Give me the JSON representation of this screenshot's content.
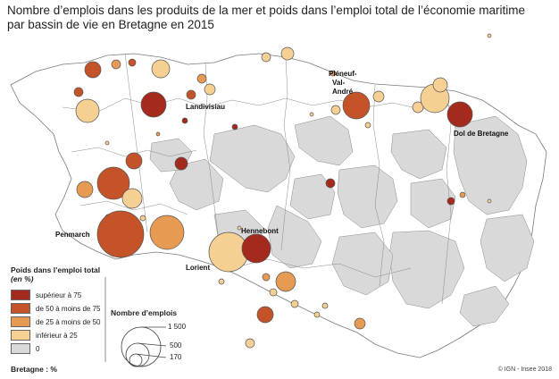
{
  "title": {
    "line1": "Nombre d’emplois dans les produits de la mer et poids dans l’emploi total de l’économie maritime",
    "line2": "par bassin de vie en Bretagne en 2015"
  },
  "legend": {
    "title": "Poids  dans l’emploi total",
    "subtitle": "(en %)",
    "classes": [
      {
        "label": "supérieur à 75",
        "color": "#a52a1e"
      },
      {
        "label": "de 50 à moins de 75",
        "color": "#c4532a"
      },
      {
        "label": "de 25 à moins de 50",
        "color": "#e79a52"
      },
      {
        "label": "inférieur à 25",
        "color": "#f6cf93"
      },
      {
        "label": "0",
        "color": "#d9d9d9"
      }
    ]
  },
  "size_legend": {
    "title": "Nombre d’emplois",
    "values": [
      "1 500",
      "500",
      "170"
    ]
  },
  "footer": {
    "region_label": "Bretagne :  %",
    "credit": "© IGN - Insee 2018"
  },
  "places": [
    {
      "name": "Landivisiau"
    },
    {
      "name": "Pléneuf-"
    },
    {
      "name": "Val-"
    },
    {
      "name": "André"
    },
    {
      "name": "Dol de Bretagne"
    },
    {
      "name": "Penmarch"
    },
    {
      "name": "Hennebont"
    },
    {
      "name": "Lorient"
    }
  ],
  "colors": {
    "land": "#ffffff",
    "border": "#7a7a7a",
    "gray_zone": "#d9d9d9"
  }
}
